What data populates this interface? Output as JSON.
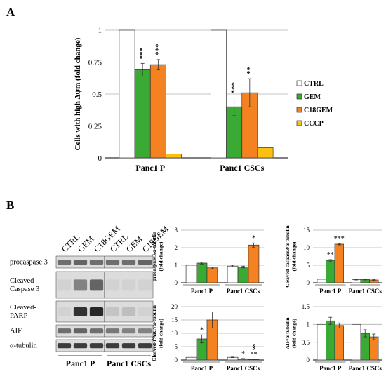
{
  "panels": {
    "a": "A",
    "b": "B"
  },
  "chart_data": [
    {
      "type": "bar",
      "ylabel": "Cells with high Δψm (fold change)",
      "categories": [
        "Panc1 P",
        "Panc1 CSCs"
      ],
      "series": [
        {
          "name": "CTRL",
          "color": "#ffffff",
          "values": [
            1,
            1
          ],
          "errors": [
            0,
            0
          ]
        },
        {
          "name": "GEM",
          "color": "#3aaa35",
          "values": [
            0.69,
            0.4
          ],
          "errors": [
            0.05,
            0.07
          ]
        },
        {
          "name": "C18GEM",
          "color": "#f58220",
          "values": [
            0.73,
            0.51
          ],
          "errors": [
            0.04,
            0.11
          ]
        },
        {
          "name": "CCCP",
          "color": "#fcc010",
          "values": [
            0.03,
            0.08
          ],
          "errors": [
            0,
            0
          ]
        }
      ],
      "annotations": [
        [
          "",
          "***",
          "***",
          ""
        ],
        [
          "",
          "***",
          "**",
          ""
        ]
      ],
      "ylim": [
        0,
        1
      ],
      "yticks": [
        "0",
        "0.25",
        "0.5",
        "0.75",
        "1"
      ],
      "yticks_values": [
        0,
        0.25,
        0.5,
        0.75,
        1
      ],
      "grid": true,
      "legend": "right"
    },
    {
      "type": "bar",
      "ylabel": "procaspase3/α-tubulin (fold change)",
      "categories": [
        "Panc1 P",
        "Panc1 CSCs"
      ],
      "series": [
        {
          "name": "CTRL",
          "color": "#ffffff",
          "values": [
            1,
            0.95
          ],
          "errors": [
            0,
            0.05
          ]
        },
        {
          "name": "GEM",
          "color": "#3aaa35",
          "values": [
            1.12,
            0.9
          ],
          "errors": [
            0.05,
            0.05
          ]
        },
        {
          "name": "C18GEM",
          "color": "#f58220",
          "values": [
            0.85,
            2.15
          ],
          "errors": [
            0.05,
            0.12
          ]
        }
      ],
      "annotations": [
        [
          "",
          "",
          ""
        ],
        [
          "",
          "",
          "*"
        ]
      ],
      "ylim": [
        0,
        3
      ],
      "yticks": [
        "0",
        "1",
        "2",
        "3"
      ],
      "yticks_values": [
        0,
        1,
        2,
        3
      ],
      "grid": true
    },
    {
      "type": "bar",
      "ylabel": "Cleaved-caspase3/α-tubulin (fold change)",
      "categories": [
        "Panc1 P",
        "Panc1 CSCs"
      ],
      "series": [
        {
          "name": "CTRL",
          "color": "#ffffff",
          "values": [
            1,
            0.9
          ],
          "errors": [
            0,
            0.1
          ]
        },
        {
          "name": "GEM",
          "color": "#3aaa35",
          "values": [
            6.3,
            0.95
          ],
          "errors": [
            0.3,
            0.15
          ]
        },
        {
          "name": "C18GEM",
          "color": "#f58220",
          "values": [
            11,
            0.8
          ],
          "errors": [
            0.2,
            0.1
          ]
        }
      ],
      "annotations": [
        [
          "",
          "**",
          "***"
        ],
        [
          "",
          "",
          ""
        ]
      ],
      "ylim": [
        0,
        15
      ],
      "yticks": [
        "0",
        "5",
        "10",
        "15"
      ],
      "yticks_values": [
        0,
        5,
        10,
        15
      ],
      "grid": true
    },
    {
      "type": "bar",
      "ylabel": "Cleaved-PARP/α-tubulin (fold change)",
      "categories": [
        "Panc1 P",
        "Panc1 CSCs"
      ],
      "series": [
        {
          "name": "CTRL",
          "color": "#ffffff",
          "values": [
            1,
            1
          ],
          "errors": [
            0,
            0.1
          ]
        },
        {
          "name": "GEM",
          "color": "#3aaa35",
          "values": [
            7.9,
            0.45
          ],
          "errors": [
            1.5,
            0.1
          ]
        },
        {
          "name": "C18GEM",
          "color": "#f58220",
          "values": [
            15,
            0.2
          ],
          "errors": [
            3,
            0.05
          ]
        }
      ],
      "annotations": [
        [
          "",
          "*",
          ""
        ],
        [
          "",
          "*",
          "**"
        ]
      ],
      "extra_annotations": [
        {
          "text": "§",
          "category": 1,
          "series": 2
        }
      ],
      "ylim": [
        0,
        20
      ],
      "yticks": [
        "0",
        "5",
        "10",
        "15",
        "20"
      ],
      "yticks_values": [
        0,
        5,
        10,
        15,
        20
      ],
      "grid": true
    },
    {
      "type": "bar",
      "ylabel": "AIF/α-tubulin (fold change)",
      "categories": [
        "Panc1 P",
        "Panc1 CSCs"
      ],
      "series": [
        {
          "name": "CTRL",
          "color": "#ffffff",
          "values": [
            1,
            1
          ],
          "errors": [
            0,
            0
          ]
        },
        {
          "name": "GEM",
          "color": "#3aaa35",
          "values": [
            1.1,
            0.75
          ],
          "errors": [
            0.1,
            0.1
          ]
        },
        {
          "name": "C18GEM",
          "color": "#f58220",
          "values": [
            0.97,
            0.65
          ],
          "errors": [
            0.07,
            0.08
          ]
        }
      ],
      "annotations": [
        [
          "",
          "",
          ""
        ],
        [
          "",
          "",
          ""
        ]
      ],
      "ylim": [
        0,
        1.5
      ],
      "yticks": [
        "0",
        "0.5",
        "1",
        "1.5"
      ],
      "yticks_values": [
        0,
        0.5,
        1,
        1.5
      ],
      "grid": true
    }
  ],
  "blot": {
    "lanes": [
      "CTRL",
      "GEM",
      "C18GEM",
      "CTRL",
      "GEM",
      "C18GEM"
    ],
    "rows": [
      {
        "label": "procaspase 3",
        "intensity": [
          0.55,
          0.6,
          0.55,
          0.55,
          0.55,
          0.6
        ]
      },
      {
        "label": "Cleaved-\nCaspase 3",
        "intensity": [
          0.05,
          0.45,
          0.6,
          0.05,
          0.05,
          0.05
        ]
      },
      {
        "label": "Cleaved-\nPARP",
        "intensity": [
          0.05,
          0.85,
          0.9,
          0.12,
          0.15,
          0.05
        ]
      },
      {
        "label": "AIF",
        "intensity": [
          0.55,
          0.6,
          0.55,
          0.5,
          0.45,
          0.45
        ]
      },
      {
        "label": "α-tubulin",
        "intensity": [
          0.8,
          0.8,
          0.8,
          0.8,
          0.8,
          0.8
        ]
      }
    ],
    "groups": [
      "Panc1 P",
      "Panc1 CSCs"
    ]
  }
}
